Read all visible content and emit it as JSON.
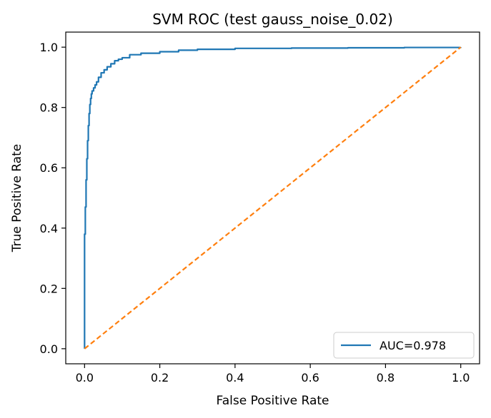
{
  "chart_data": {
    "type": "line",
    "title": "SVM ROC (test gauss_noise_0.02)",
    "xlabel": "False Positive Rate",
    "ylabel": "True Positive Rate",
    "xlim": [
      -0.05,
      1.05
    ],
    "ylim": [
      -0.05,
      1.05
    ],
    "xticks": [
      0.0,
      0.2,
      0.4,
      0.6,
      0.8,
      1.0
    ],
    "xtick_labels": [
      "0.0",
      "0.2",
      "0.4",
      "0.6",
      "0.8",
      "1.0"
    ],
    "yticks": [
      0.0,
      0.2,
      0.4,
      0.6,
      0.8,
      1.0
    ],
    "ytick_labels": [
      "0.0",
      "0.2",
      "0.4",
      "0.6",
      "0.8",
      "1.0"
    ],
    "grid": false,
    "legend_position": "lower-right",
    "series": [
      {
        "name": "AUC=0.978",
        "color": "#1f77b4",
        "line_style": "solid",
        "step": true,
        "x": [
          0.0,
          0.0,
          0.002,
          0.004,
          0.006,
          0.008,
          0.01,
          0.012,
          0.014,
          0.016,
          0.018,
          0.02,
          0.024,
          0.028,
          0.032,
          0.037,
          0.044,
          0.052,
          0.06,
          0.07,
          0.08,
          0.09,
          0.1,
          0.12,
          0.15,
          0.2,
          0.25,
          0.3,
          0.4,
          0.55,
          0.7,
          0.85,
          1.0
        ],
        "y": [
          0.0,
          0.38,
          0.47,
          0.56,
          0.63,
          0.69,
          0.74,
          0.78,
          0.81,
          0.83,
          0.845,
          0.855,
          0.865,
          0.875,
          0.885,
          0.9,
          0.915,
          0.925,
          0.935,
          0.945,
          0.955,
          0.96,
          0.965,
          0.975,
          0.98,
          0.985,
          0.99,
          0.993,
          0.996,
          0.997,
          0.998,
          0.999,
          1.0
        ]
      },
      {
        "name": "",
        "color": "#ff7f0e",
        "line_style": "dashed",
        "step": false,
        "x": [
          0.0,
          1.0
        ],
        "y": [
          0.0,
          1.0
        ]
      }
    ],
    "legend": [
      "AUC=0.978"
    ]
  }
}
